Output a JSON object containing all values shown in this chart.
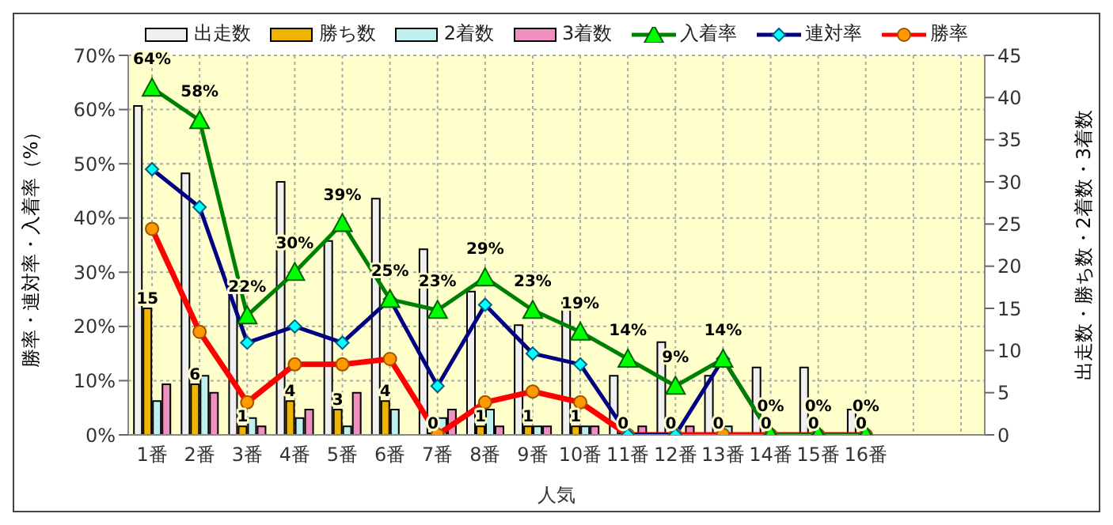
{
  "chart_data": {
    "type": "bar",
    "xlabel": "人気",
    "ylabel": "勝率・連対率・入着率（%）",
    "y2label": "出走数・勝ち数・2着数・3着数",
    "categories": [
      "1番",
      "2番",
      "3番",
      "4番",
      "5番",
      "6番",
      "7番",
      "8番",
      "9番",
      "10番",
      "11番",
      "12番",
      "13番",
      "14番",
      "15番",
      "16番",
      null,
      null
    ],
    "series": [
      {
        "name": "出走数",
        "axis": "y2",
        "color": "#f0f0f0",
        "values": [
          39,
          31,
          18,
          30,
          23,
          28,
          22,
          17,
          13,
          16,
          7,
          11,
          7,
          8,
          8,
          3,
          null,
          null
        ]
      },
      {
        "name": "勝ち数",
        "axis": "y2",
        "color": "#f0b400",
        "values": [
          15,
          6,
          1,
          4,
          3,
          4,
          0,
          1,
          1,
          1,
          0,
          0,
          0,
          0,
          0,
          0,
          null,
          null
        ],
        "value_labels": [
          "15",
          "6",
          "1",
          "4",
          "3",
          "4",
          "0",
          "1",
          "1",
          "1",
          "0",
          "0",
          "0",
          "0",
          "0",
          "0",
          null,
          null
        ]
      },
      {
        "name": "2着数",
        "axis": "y2",
        "color": "#bff0f0",
        "values": [
          4,
          7,
          2,
          2,
          1,
          3,
          2,
          3,
          1,
          1,
          0,
          0,
          1,
          0,
          0,
          0,
          null,
          null
        ]
      },
      {
        "name": "3着数",
        "axis": "y2",
        "color": "#f090c0",
        "values": [
          6,
          5,
          1,
          3,
          5,
          0,
          3,
          1,
          1,
          1,
          1,
          1,
          0,
          0,
          0,
          0,
          null,
          null
        ]
      },
      {
        "name": "入着率",
        "type": "line",
        "axis": "y",
        "color": "#008000",
        "marker": "triangle",
        "values": [
          64,
          58,
          22,
          30,
          39,
          25,
          23,
          29,
          23,
          19,
          14,
          9,
          14,
          0,
          0,
          0,
          null,
          null
        ],
        "value_labels": [
          "64%",
          "58%",
          "22%",
          "30%",
          "39%",
          "25%",
          "23%",
          "29%",
          "23%",
          "19%",
          "14%",
          "9%",
          "14%",
          "0%",
          "0%",
          "0%",
          null,
          null
        ]
      },
      {
        "name": "連対率",
        "type": "line",
        "axis": "y",
        "color": "#000080",
        "marker": "diamond",
        "values": [
          49,
          42,
          17,
          20,
          17,
          25,
          9,
          24,
          15,
          13,
          0,
          0,
          14,
          0,
          0,
          0,
          null,
          null
        ]
      },
      {
        "name": "勝率",
        "type": "line",
        "axis": "y",
        "color": "#ff0000",
        "marker": "circle",
        "values": [
          38,
          19,
          6,
          13,
          13,
          14,
          0,
          6,
          8,
          6,
          0,
          0,
          0,
          0,
          0,
          0,
          null,
          null
        ]
      }
    ],
    "ylim": [
      0,
      70
    ],
    "yticks": [
      {
        "value": 0,
        "label": "0%"
      },
      {
        "value": 10,
        "label": "10%"
      },
      {
        "value": 20,
        "label": "20%"
      },
      {
        "value": 30,
        "label": "30%"
      },
      {
        "value": 40,
        "label": "40%"
      },
      {
        "value": 50,
        "label": "50%"
      },
      {
        "value": 60,
        "label": "60%"
      },
      {
        "value": 70,
        "label": "70%"
      }
    ],
    "y2lim": [
      0,
      45
    ],
    "y2ticks": [
      0,
      5,
      10,
      15,
      20,
      25,
      30,
      35,
      40,
      45
    ],
    "grid": true,
    "legend": "top"
  }
}
